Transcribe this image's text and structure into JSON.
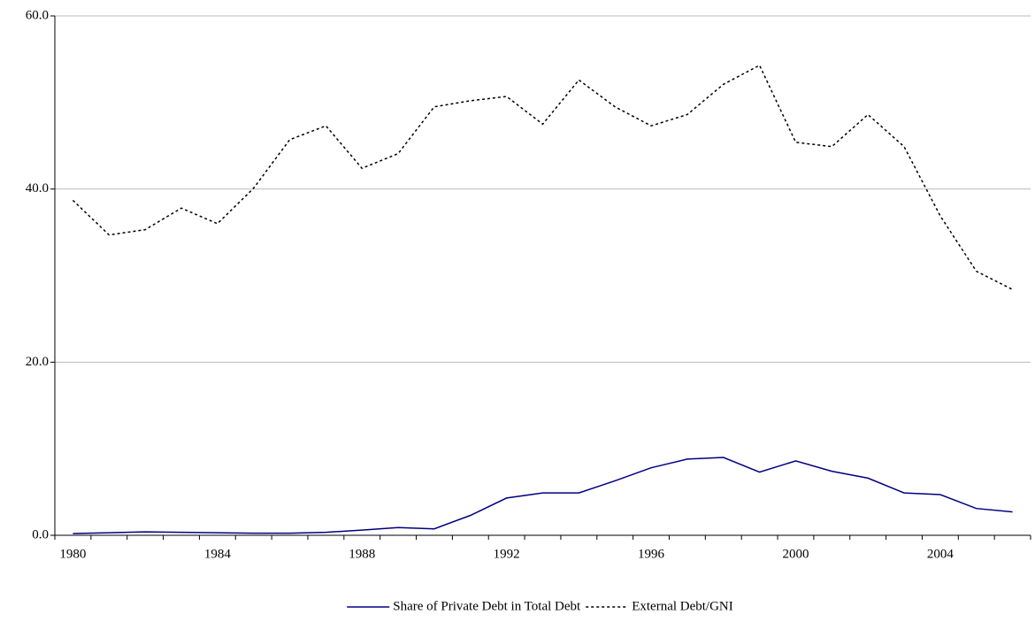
{
  "chart_data": {
    "type": "line",
    "categories": [
      "1980",
      null,
      null,
      null,
      "1984",
      null,
      null,
      null,
      "1988",
      null,
      null,
      null,
      "1992",
      null,
      null,
      null,
      "1996",
      null,
      null,
      null,
      "2000",
      null,
      null,
      null,
      "2004",
      null,
      null
    ],
    "series": [
      {
        "name": "Share of Private Debt in Total Debt",
        "color": "#000080",
        "dash": "solid",
        "values": [
          0.2,
          0.3,
          0.4,
          0.35,
          0.3,
          0.25,
          0.25,
          0.35,
          0.6,
          0.9,
          0.75,
          2.3,
          4.3,
          4.9,
          4.9,
          6.3,
          7.8,
          8.8,
          9.0,
          7.3,
          8.6,
          7.4,
          6.6,
          4.9,
          4.7,
          3.1,
          2.7
        ]
      },
      {
        "name": "External Debt/GNI",
        "color": "#000000",
        "dash": "dotted",
        "values": [
          38.7,
          34.7,
          35.3,
          37.8,
          36.0,
          40.1,
          45.7,
          47.3,
          42.4,
          44.1,
          49.5,
          50.2,
          50.7,
          47.5,
          52.6,
          49.5,
          47.3,
          48.6,
          52.1,
          54.3,
          45.4,
          44.9,
          48.6,
          44.9,
          36.9,
          30.5,
          28.4
        ]
      }
    ],
    "ylim": [
      0,
      60
    ],
    "yticks": [
      {
        "value": 0,
        "label": "0.0"
      },
      {
        "value": 20,
        "label": "20.0"
      },
      {
        "value": 40,
        "label": "40.0"
      },
      {
        "value": 60,
        "label": "60.0"
      }
    ],
    "grid": true,
    "legend": "bottom"
  }
}
